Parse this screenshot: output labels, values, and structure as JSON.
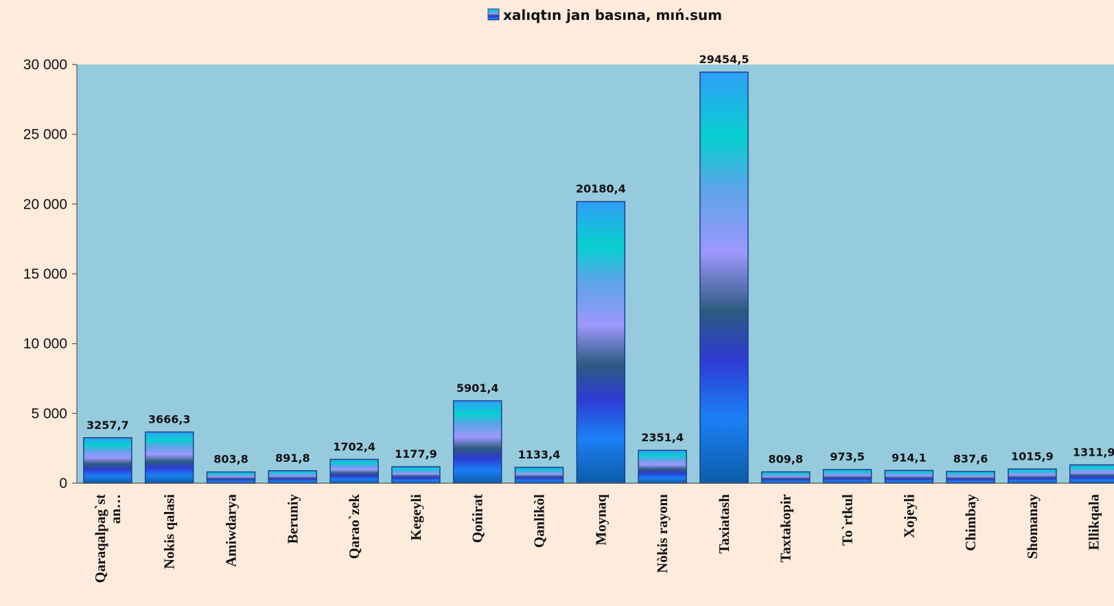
{
  "chart_data": {
    "type": "bar",
    "title": "",
    "xlabel": "",
    "ylabel": "",
    "ylim": [
      0,
      30000
    ],
    "ytick_values": [
      0,
      5000,
      10000,
      15000,
      20000,
      25000,
      30000
    ],
    "ytick_labels": [
      "0",
      "5 000",
      "10 000",
      "15 000",
      "20 000",
      "25 000",
      "30 000"
    ],
    "legend_position": "top-center",
    "grid": false,
    "colors": {
      "plot_background": "#96cbdd",
      "page_background": "#fdebdc",
      "bar_outline": "#1d3f86",
      "gradient": [
        "#0c5ea8",
        "#1b7ff6",
        "#2e3bd3",
        "#2d5b80",
        "#9d97fc",
        "#5aa5e8",
        "#07d0cf",
        "#2f9ff8"
      ]
    },
    "categories": [
      [
        "Qaraqalpag`st",
        "an…"
      ],
      [
        "Nokis qalasi"
      ],
      [
        "Amiwdarya"
      ],
      [
        "Beruniy"
      ],
      [
        "Qarao`zek"
      ],
      [
        "Kegeyli"
      ],
      [
        "Qońirat"
      ],
      [
        "Qanlikòl"
      ],
      [
        "Moynaq"
      ],
      [
        "Nòkis rayonı"
      ],
      [
        "Taxiatash"
      ],
      [
        "Taxtakopir"
      ],
      [
        "To`rtkul"
      ],
      [
        "Xojeyli"
      ],
      [
        "Chimbay"
      ],
      [
        "Shomanay"
      ],
      [
        "Ellikqala"
      ]
    ],
    "series": [
      {
        "name": "xalıqtın jan basına, mıń.sum",
        "values": [
          3257.7,
          3666.3,
          803.8,
          891.8,
          1702.4,
          1177.9,
          5901.4,
          1133.4,
          20180.4,
          2351.4,
          29454.5,
          809.8,
          973.5,
          914.1,
          837.6,
          1015.9,
          1311.9
        ],
        "labels": [
          "3257,7",
          "3666,3",
          "803,8",
          "891,8",
          "1702,4",
          "1177,9",
          "5901,4",
          "1133,4",
          "20180,4",
          "2351,4",
          "29454,5",
          "809,8",
          "973,5",
          "914,1",
          "837,6",
          "1015,9",
          "1311,9"
        ]
      }
    ]
  }
}
